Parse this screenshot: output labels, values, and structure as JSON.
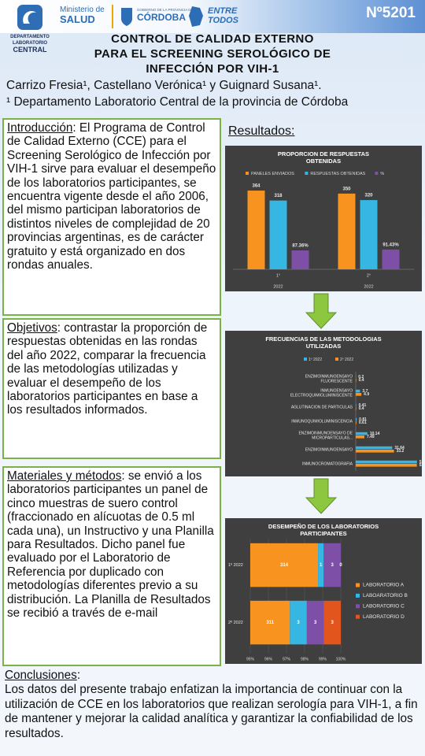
{
  "header": {
    "logo_department": [
      "DEPARTAMENTO",
      "LABORATORIO",
      "CENTRAL"
    ],
    "logo_ministry": [
      "Ministerio de",
      "SALUD"
    ],
    "logo_province": [
      "GOBIERNO DE LA PROVINCIA DE",
      "CÓRDOBA"
    ],
    "logo_slogan": [
      "ENTRE",
      "TODOS"
    ],
    "poster_number": "Nº5201",
    "title": [
      "CONTROL DE CALIDAD EXTERNO",
      "PARA EL SCREENING SEROLÓGICO DE",
      "INFECCIÓN POR VIH-1"
    ],
    "authors": "Carrizo Fresia¹, Castellano Verónica¹ y Guignard Susana¹.",
    "affiliation": "¹ Departamento Laboratorio Central de la provincia de Córdoba"
  },
  "sections": {
    "introduction": {
      "heading": "Introducción",
      "text": ": El Programa de Control de Calidad Externo (CCE) para el Screening Serológico de Infección por VIH-1 sirve para evaluar el desempeño de los laboratorios participantes, se encuentra vigente desde el año 2006, del mismo participan laboratorios de distintos niveles de complejidad de 20 provincias argentinas, es de carácter gratuito y está organizado en dos rondas anuales."
    },
    "objectives": {
      "heading": "Objetivos",
      "text": ": contrastar la proporción de respuestas obtenidas en las rondas del año 2022, comparar la frecuencia de las metodologías utilizadas y evaluar el desempeño de los laboratorios participantes en base a los resultados informados."
    },
    "methods": {
      "heading": "Materiales y métodos",
      "text": ": se envió a los laboratorios participantes un panel de cinco muestras de suero control (fraccionado en alícuotas de 0.5 ml cada una), un Instructivo y una Planilla para Resultados. Dicho panel fue evaluado por el Laboratorio de Referencia por duplicado con metodologías diferentes previo a su distribución. La Planilla de Resultados se recibió a través de e-mail"
    },
    "conclusions": {
      "heading": "Conclusiones",
      "text": "Los datos del presente trabajo enfatizan la importancia de continuar con la utilización de CCE en los laboratorios que realizan serología para VIH-1, a fin de mantener y mejorar la calidad analítica y garantizar la confiabilidad de los resultados."
    }
  },
  "results_heading": "Resultados:",
  "charts": [
    {
      "type": "bar",
      "title": [
        "PROPORCION DE RESPUESTAS",
        "OBTENIDAS"
      ],
      "categories": [
        "1°",
        "2°"
      ],
      "subcategories": [
        "2022",
        "2022"
      ],
      "ylim": [
        0,
        420
      ],
      "legend": "top",
      "series": [
        {
          "name": "PANELES ENVIADOS",
          "color": "#f7931e",
          "values": [
            364,
            350
          ]
        },
        {
          "name": "RESPUESTAS OBTENIDAS",
          "color": "#35b6e3",
          "values": [
            318,
            320
          ]
        },
        {
          "name": "%",
          "color": "#7d4fa6",
          "values": [
            87.36,
            91.43
          ],
          "value_labels": [
            "87.36%",
            "91.43%"
          ]
        }
      ]
    },
    {
      "type": "hbar",
      "title": [
        "FRECUENCIAS DE LAS METODOLOGIAS",
        "UTILIZADAS"
      ],
      "categories": [
        [
          "ENZIMOINMUNOENSAYO",
          "FLUORESCENTE"
        ],
        [
          "INMUNOENSAYO",
          "ELECTROQUIMIOLUMINISCENTE"
        ],
        "AGLUTINACION DE PARTICULAS",
        "INMUNOQUIMIOLUMINISCENCIA",
        [
          "ENZIMOINMUNOENSAYO DE",
          "MICROPARTICULAS..."
        ],
        "ENZIMOINMUNOENSAYO",
        "INMUNOCROMATOGRAFIA"
      ],
      "xlim": [
        0,
        56
      ],
      "legend": "top",
      "series": [
        {
          "name": "1º 2022",
          "color": "#35b6e3",
          "values": [
            0.2,
            3.7,
            0.41,
            0.81,
            10.14,
            31.64,
            53.14
          ]
        },
        {
          "name": "2º 2022",
          "color": "#f7931e",
          "values": [
            0.4,
            4.9,
            0.4,
            0.61,
            7.49,
            33.2,
            53.04
          ]
        }
      ]
    },
    {
      "type": "stacked_hbar",
      "stacking": "percent",
      "title": [
        "DESEMPEÑO DE LOS LABORATORIOS",
        "PARTICIPANTES"
      ],
      "categories": [
        "1º 2022",
        "2º 2022"
      ],
      "xlim": [
        95,
        100
      ],
      "xticks": [
        {
          "value": 95,
          "label": "95%"
        },
        {
          "value": 96,
          "label": "96%"
        },
        {
          "value": 97,
          "label": "97%"
        },
        {
          "value": 98,
          "label": "98%"
        },
        {
          "value": 99,
          "label": "99%"
        },
        {
          "value": 100,
          "label": "100%"
        }
      ],
      "grid": true,
      "legend": "right",
      "series": [
        {
          "name": "LABORATORIO A",
          "color": "#f7931e",
          "values": [
            314,
            311
          ]
        },
        {
          "name": "LABOARATORIO B",
          "color": "#35b6e3",
          "values": [
            1,
            3
          ]
        },
        {
          "name": "LABORATORIO C",
          "color": "#7d4fa6",
          "values": [
            3,
            3
          ]
        },
        {
          "name": "LABORATORIO D",
          "color": "#e2561e",
          "values": [
            0,
            3
          ]
        }
      ]
    }
  ]
}
